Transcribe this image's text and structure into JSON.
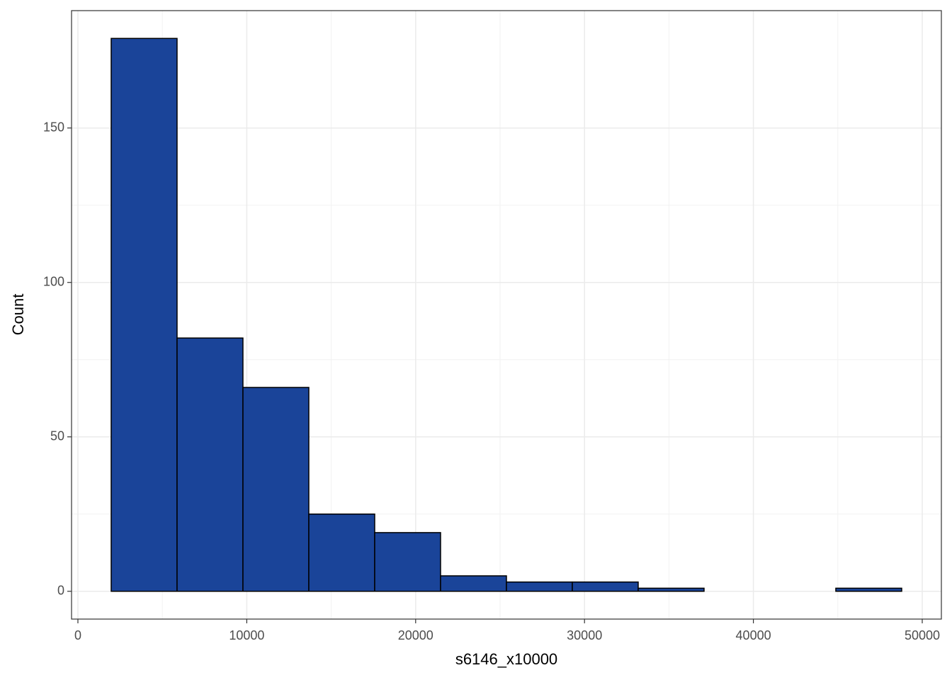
{
  "chart_data": {
    "type": "histogram",
    "x_label": "s6146_x10000",
    "y_label": "Count",
    "bins": [
      1971,
      5872,
      9773,
      13674,
      17575,
      21476,
      25377,
      29278,
      33179,
      37080,
      40981,
      44882,
      48783
    ],
    "values": [
      179,
      82,
      66,
      25,
      19,
      5,
      3,
      3,
      1,
      0,
      0,
      1
    ],
    "color": "#1a4499",
    "edge_color": "#000000",
    "xlim": [
      -377,
      51133
    ],
    "xticks": [
      0,
      10000,
      20000,
      30000,
      40000,
      50000
    ],
    "ylim": [
      -9,
      188
    ],
    "yticks": [
      0,
      50,
      100,
      150
    ],
    "grid": true
  }
}
